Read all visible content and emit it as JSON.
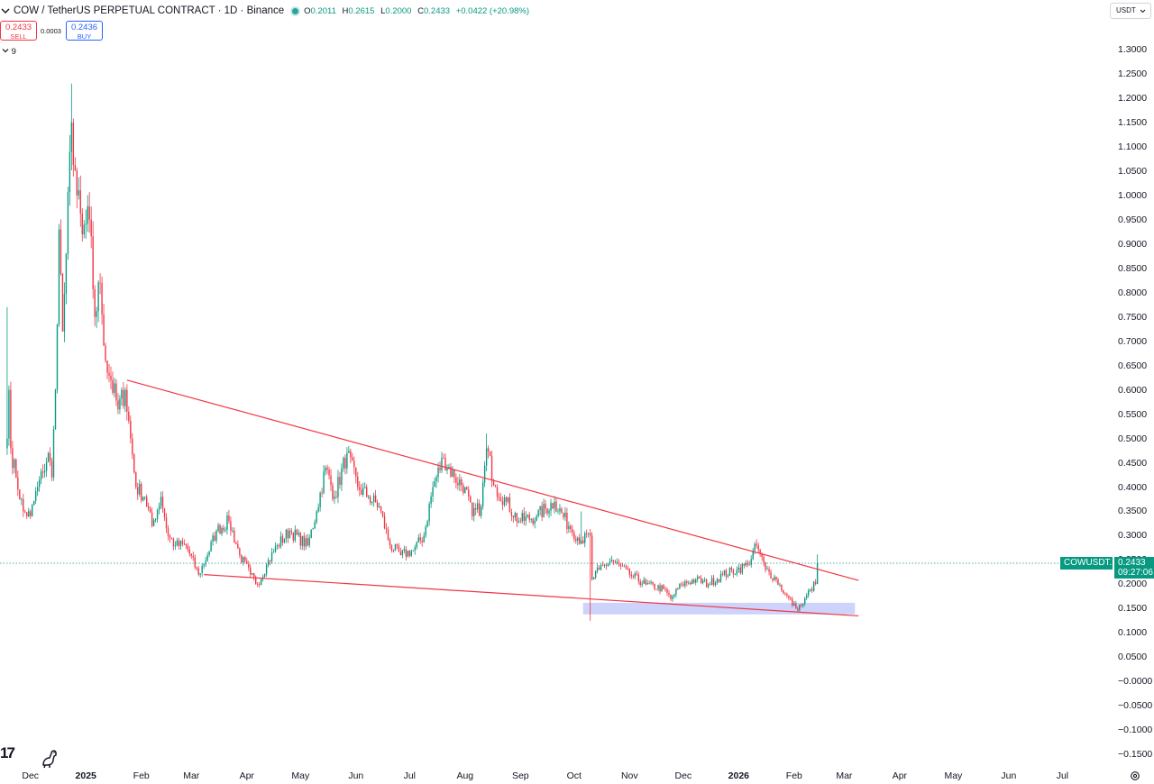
{
  "legend": {
    "title": "COW / TetherUS PERPETUAL CONTRACT · 1D · Binance",
    "status_icon": "green-dot-icon",
    "open_label": "O",
    "open": "0.2011",
    "high_label": "H",
    "high": "0.2615",
    "low_label": "L",
    "low": "0.2000",
    "close_label": "C",
    "close": "0.2433",
    "change": "+0.0422 (+20.98%)"
  },
  "trade": {
    "sell_price": "0.2433",
    "sell_label": "SELL",
    "spread": "0.0003",
    "buy_price": "0.2436",
    "buy_label": "BUY"
  },
  "indicators_toggle": {
    "icon": "chevron-down-icon",
    "count": "9"
  },
  "currency": {
    "label": "USDT",
    "icon": "chevron-down-icon"
  },
  "price_tag": {
    "symbol": "COWUSDT.P",
    "price": "0.2433",
    "countdown": "09:27:06"
  },
  "branding": {
    "logo": "17",
    "logo_icon": "tradingview-logo-icon",
    "dino_icon": "dino-icon",
    "settings_icon": "gear-icon"
  },
  "colors": {
    "up": "#089981",
    "down": "#f23645",
    "trendline": "#f23645",
    "zone": "#c5cbfa",
    "price_tag": "#089981",
    "text": "#131722"
  },
  "chart_data": {
    "type": "candlestick",
    "y_ticks": [
      "1.3000",
      "1.2500",
      "1.2000",
      "1.1500",
      "1.1000",
      "1.0500",
      "1.0000",
      "0.9500",
      "0.9000",
      "0.8500",
      "0.8000",
      "0.7500",
      "0.7000",
      "0.6500",
      "0.6000",
      "0.5500",
      "0.5000",
      "0.4500",
      "0.4000",
      "0.3500",
      "0.3000",
      "0.2500",
      "0.2000",
      "0.1500",
      "0.1000",
      "0.0500",
      "−0.0000",
      "−0.0500",
      "−0.1000",
      "−0.1500"
    ],
    "ylim": [
      -0.17,
      1.35
    ],
    "x_ticks": [
      {
        "label": "Dec",
        "date": "2024-12-01"
      },
      {
        "label": "2025",
        "date": "2025-01-01",
        "bold": true
      },
      {
        "label": "Feb",
        "date": "2025-02-01"
      },
      {
        "label": "Mar",
        "date": "2025-03-01"
      },
      {
        "label": "Apr",
        "date": "2025-04-01"
      },
      {
        "label": "May",
        "date": "2025-05-01"
      },
      {
        "label": "Jun",
        "date": "2025-06-01"
      },
      {
        "label": "Jul",
        "date": "2025-07-01"
      },
      {
        "label": "Aug",
        "date": "2025-08-01"
      },
      {
        "label": "Sep",
        "date": "2025-09-01"
      },
      {
        "label": "Oct",
        "date": "2025-10-01"
      },
      {
        "label": "Nov",
        "date": "2025-11-01"
      },
      {
        "label": "Dec",
        "date": "2025-12-01"
      },
      {
        "label": "2026",
        "date": "2026-01-01",
        "bold": true
      },
      {
        "label": "Feb",
        "date": "2026-02-01"
      },
      {
        "label": "Mar",
        "date": "2026-03-01"
      },
      {
        "label": "Apr",
        "date": "2026-04-01"
      },
      {
        "label": "May",
        "date": "2026-05-01"
      },
      {
        "label": "Jun",
        "date": "2026-06-01"
      },
      {
        "label": "Jul",
        "date": "2026-07-01"
      }
    ],
    "xlim": [
      "2024-11-14",
      "2026-07-27"
    ],
    "price_path": [
      {
        "date": "2024-11-18",
        "close": 0.5
      },
      {
        "date": "2024-11-19",
        "close": 0.6
      },
      {
        "date": "2024-11-20",
        "close": 0.48
      },
      {
        "date": "2024-11-23",
        "close": 0.42
      },
      {
        "date": "2024-11-27",
        "close": 0.35
      },
      {
        "date": "2024-12-01",
        "close": 0.34
      },
      {
        "date": "2024-12-05",
        "close": 0.4
      },
      {
        "date": "2024-12-08",
        "close": 0.43
      },
      {
        "date": "2024-12-11",
        "close": 0.47
      },
      {
        "date": "2024-12-13",
        "close": 0.42
      },
      {
        "date": "2024-12-15",
        "close": 0.6
      },
      {
        "date": "2024-12-17",
        "close": 0.93
      },
      {
        "date": "2024-12-19",
        "close": 0.72
      },
      {
        "date": "2024-12-21",
        "close": 0.88
      },
      {
        "date": "2024-12-24",
        "close": 1.15
      },
      {
        "date": "2024-12-27",
        "close": 1.0
      },
      {
        "date": "2024-12-30",
        "close": 0.92
      },
      {
        "date": "2025-01-03",
        "close": 0.95
      },
      {
        "date": "2025-01-06",
        "close": 0.75
      },
      {
        "date": "2025-01-09",
        "close": 0.82
      },
      {
        "date": "2025-01-12",
        "close": 0.66
      },
      {
        "date": "2025-01-15",
        "close": 0.62
      },
      {
        "date": "2025-01-19",
        "close": 0.56
      },
      {
        "date": "2025-01-23",
        "close": 0.6
      },
      {
        "date": "2025-01-26",
        "close": 0.5
      },
      {
        "date": "2025-01-29",
        "close": 0.4
      },
      {
        "date": "2025-02-03",
        "close": 0.38
      },
      {
        "date": "2025-02-07",
        "close": 0.32
      },
      {
        "date": "2025-02-12",
        "close": 0.38
      },
      {
        "date": "2025-02-16",
        "close": 0.3
      },
      {
        "date": "2025-02-20",
        "close": 0.28
      },
      {
        "date": "2025-02-26",
        "close": 0.28
      },
      {
        "date": "2025-03-05",
        "close": 0.22
      },
      {
        "date": "2025-03-10",
        "close": 0.26
      },
      {
        "date": "2025-03-15",
        "close": 0.31
      },
      {
        "date": "2025-03-22",
        "close": 0.33
      },
      {
        "date": "2025-03-28",
        "close": 0.26
      },
      {
        "date": "2025-04-03",
        "close": 0.22
      },
      {
        "date": "2025-04-07",
        "close": 0.2
      },
      {
        "date": "2025-04-12",
        "close": 0.24
      },
      {
        "date": "2025-04-18",
        "close": 0.28
      },
      {
        "date": "2025-04-25",
        "close": 0.31
      },
      {
        "date": "2025-05-05",
        "close": 0.28
      },
      {
        "date": "2025-05-10",
        "close": 0.35
      },
      {
        "date": "2025-05-15",
        "close": 0.44
      },
      {
        "date": "2025-05-20",
        "close": 0.38
      },
      {
        "date": "2025-05-27",
        "close": 0.47
      },
      {
        "date": "2025-06-02",
        "close": 0.4
      },
      {
        "date": "2025-06-08",
        "close": 0.38
      },
      {
        "date": "2025-06-14",
        "close": 0.36
      },
      {
        "date": "2025-06-20",
        "close": 0.28
      },
      {
        "date": "2025-06-26",
        "close": 0.26
      },
      {
        "date": "2025-07-03",
        "close": 0.27
      },
      {
        "date": "2025-07-09",
        "close": 0.3
      },
      {
        "date": "2025-07-14",
        "close": 0.4
      },
      {
        "date": "2025-07-20",
        "close": 0.46
      },
      {
        "date": "2025-07-26",
        "close": 0.42
      },
      {
        "date": "2025-08-01",
        "close": 0.4
      },
      {
        "date": "2025-08-05",
        "close": 0.34
      },
      {
        "date": "2025-08-10",
        "close": 0.36
      },
      {
        "date": "2025-08-13",
        "close": 0.48
      },
      {
        "date": "2025-08-18",
        "close": 0.4
      },
      {
        "date": "2025-08-24",
        "close": 0.37
      },
      {
        "date": "2025-08-31",
        "close": 0.33
      },
      {
        "date": "2025-09-10",
        "close": 0.34
      },
      {
        "date": "2025-09-20",
        "close": 0.37
      },
      {
        "date": "2025-09-28",
        "close": 0.32
      },
      {
        "date": "2025-10-05",
        "close": 0.29
      },
      {
        "date": "2025-10-10",
        "close": 0.3
      },
      {
        "date": "2025-10-11",
        "close": 0.21
      },
      {
        "date": "2025-10-15",
        "close": 0.23
      },
      {
        "date": "2025-10-22",
        "close": 0.25
      },
      {
        "date": "2025-11-01",
        "close": 0.22
      },
      {
        "date": "2025-11-10",
        "close": 0.2
      },
      {
        "date": "2025-11-20",
        "close": 0.19
      },
      {
        "date": "2025-11-24",
        "close": 0.17
      },
      {
        "date": "2025-11-30",
        "close": 0.2
      },
      {
        "date": "2025-12-08",
        "close": 0.21
      },
      {
        "date": "2025-12-15",
        "close": 0.2
      },
      {
        "date": "2025-12-23",
        "close": 0.22
      },
      {
        "date": "2025-12-31",
        "close": 0.23
      },
      {
        "date": "2026-01-06",
        "close": 0.24
      },
      {
        "date": "2026-01-11",
        "close": 0.28
      },
      {
        "date": "2026-01-16",
        "close": 0.23
      },
      {
        "date": "2026-01-22",
        "close": 0.21
      },
      {
        "date": "2026-01-27",
        "close": 0.18
      },
      {
        "date": "2026-02-02",
        "close": 0.15
      },
      {
        "date": "2026-02-06",
        "close": 0.16
      },
      {
        "date": "2026-02-10",
        "close": 0.19
      },
      {
        "date": "2026-02-13",
        "close": 0.2011
      },
      {
        "date": "2026-02-14",
        "close": 0.2433
      }
    ],
    "spikes": [
      {
        "date": "2024-12-24",
        "high": 1.23
      },
      {
        "date": "2024-11-18",
        "high": 0.77
      },
      {
        "date": "2025-08-13",
        "high": 0.51
      },
      {
        "date": "2025-10-10",
        "low": 0.125
      },
      {
        "date": "2025-10-05",
        "high": 0.35
      }
    ],
    "last_bar": {
      "date": "2026-02-14",
      "open": 0.2011,
      "high": 0.2615,
      "low": 0.2,
      "close": 0.2433
    },
    "current_price": 0.2433,
    "trendlines": [
      {
        "from": {
          "date": "2025-01-24",
          "price": 0.62
        },
        "to": {
          "date": "2026-03-09",
          "price": 0.208
        }
      },
      {
        "from": {
          "date": "2025-03-08",
          "price": 0.22
        },
        "to": {
          "date": "2026-03-09",
          "price": 0.135
        }
      }
    ],
    "support_zone": {
      "from_date": "2025-10-06",
      "to_date": "2026-03-07",
      "low": 0.138,
      "high": 0.162
    }
  }
}
